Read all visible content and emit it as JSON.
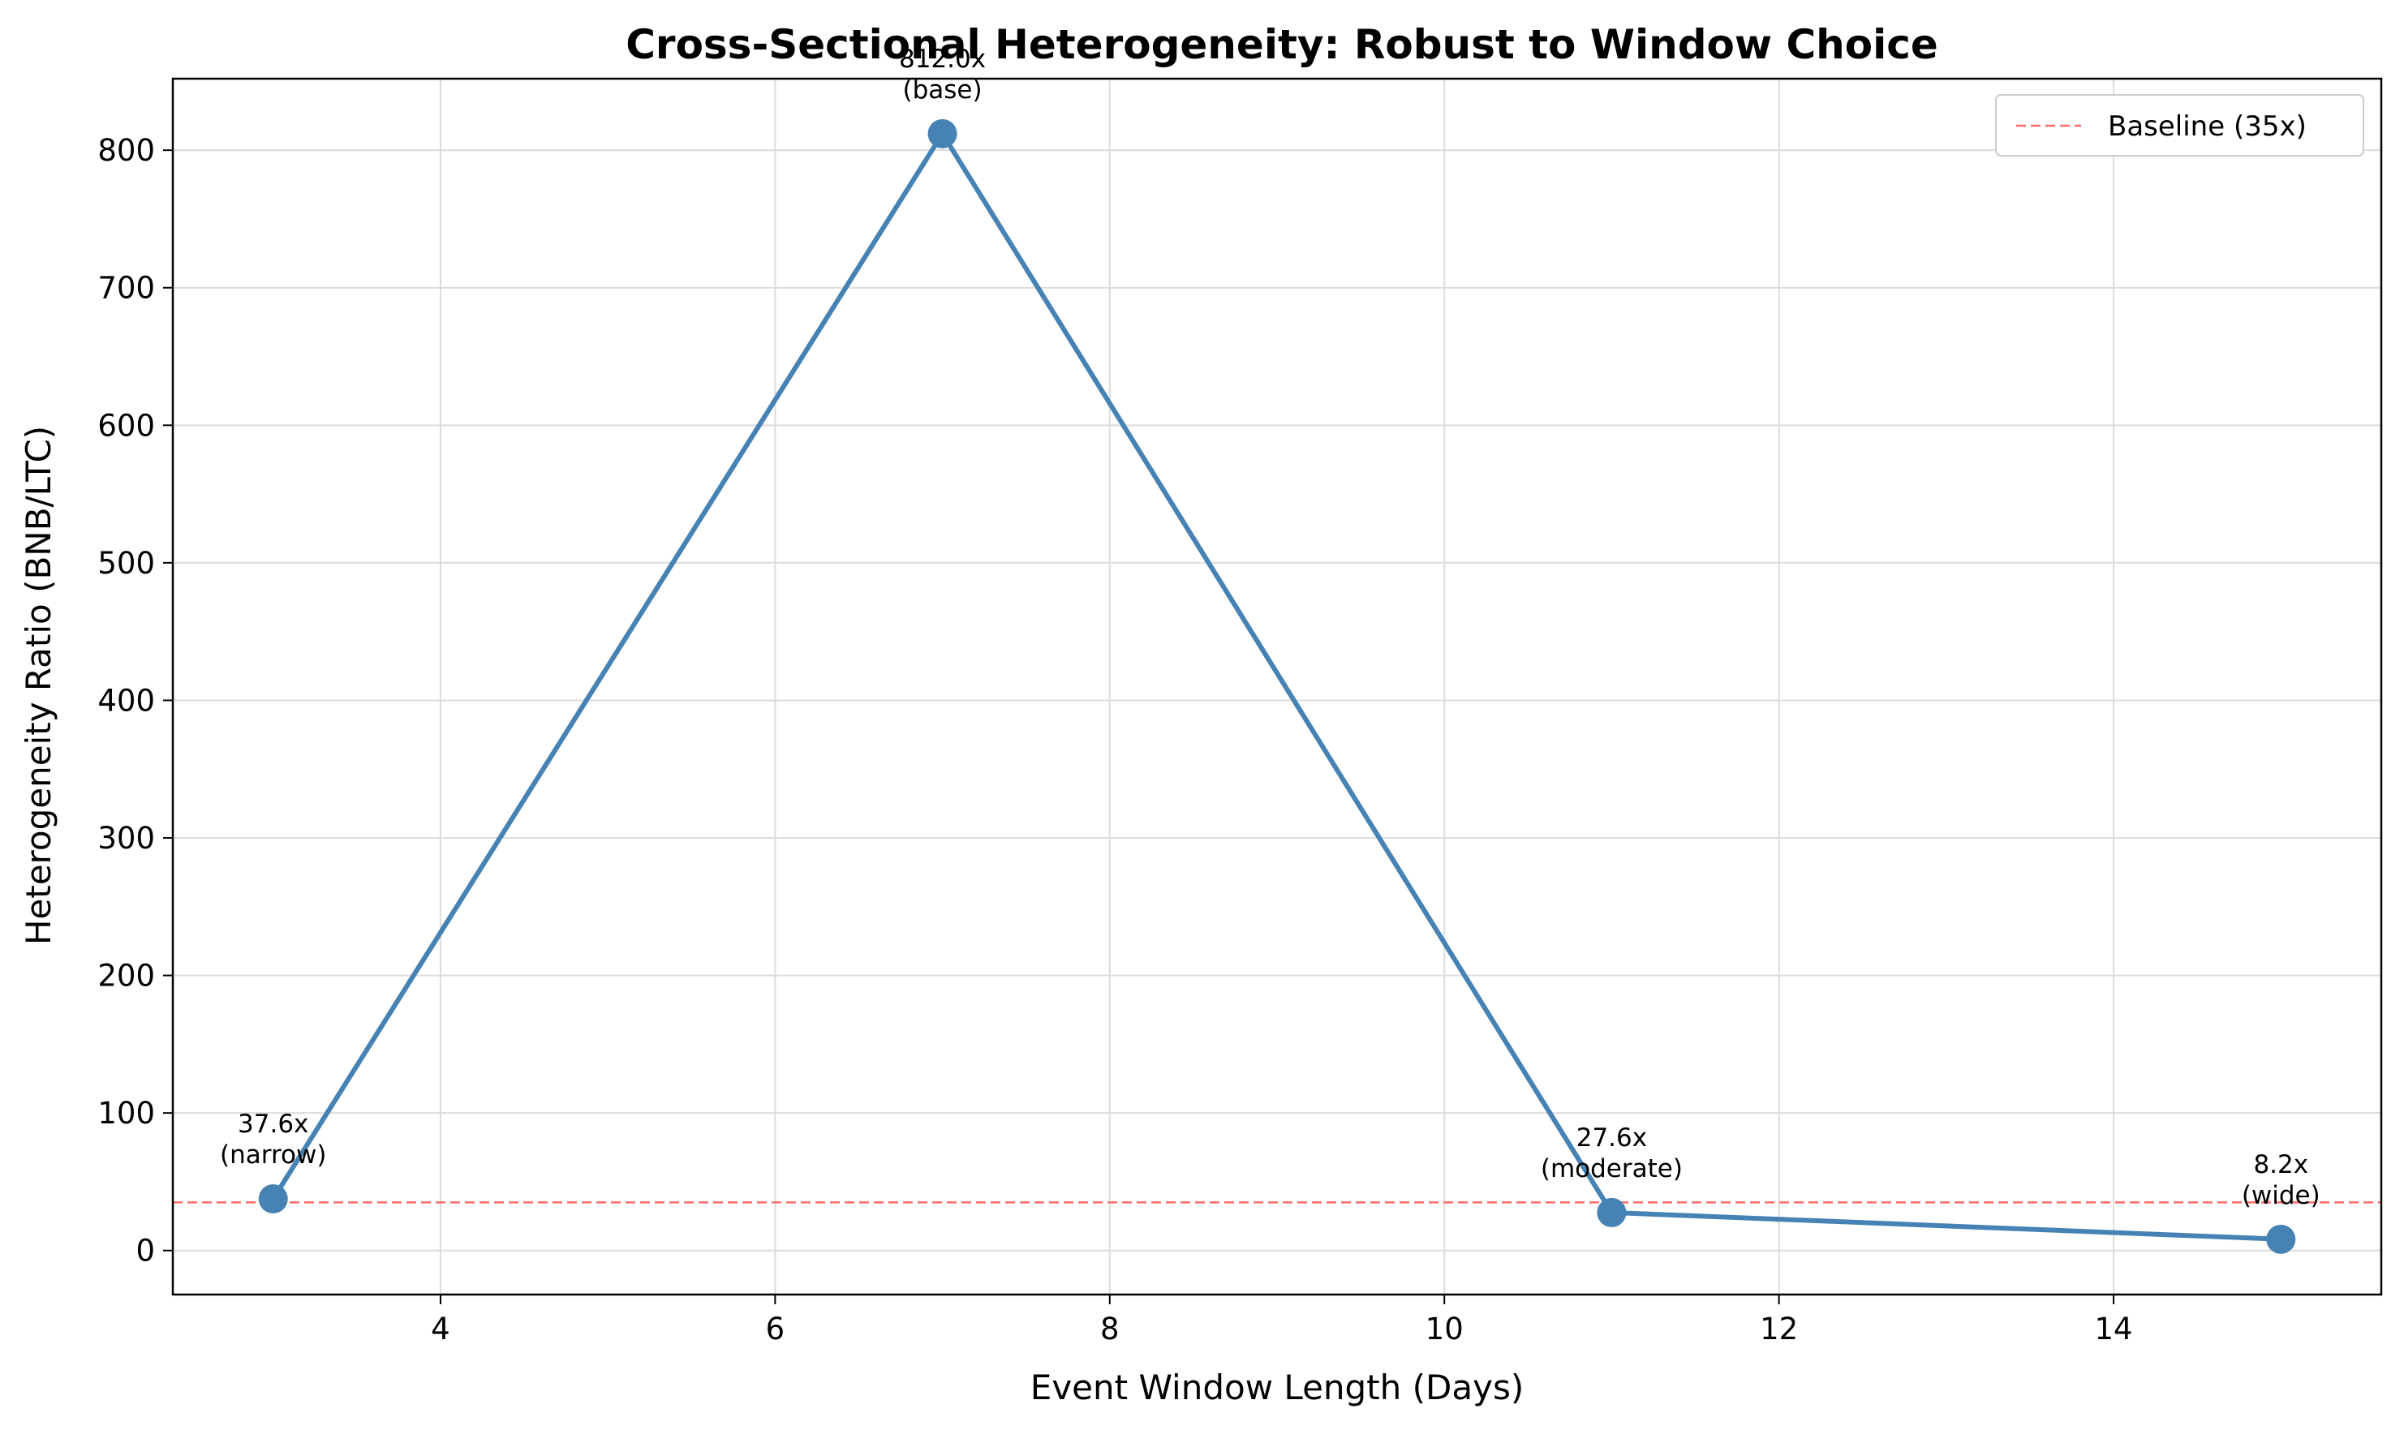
{
  "chart_data": {
    "type": "line",
    "title": "Cross-Sectional Heterogeneity: Robust to Window Choice",
    "xlabel": "Event Window Length (Days)",
    "ylabel": "Heterogeneity Ratio (BNB/LTC)",
    "xlim": [
      2.4,
      15.6
    ],
    "ylim": [
      -32,
      852
    ],
    "xticks": [
      4,
      6,
      8,
      10,
      12,
      14
    ],
    "yticks": [
      0,
      100,
      200,
      300,
      400,
      500,
      600,
      700,
      800
    ],
    "grid": true,
    "legend_position": "top-right",
    "series": [
      {
        "values_x": [
          3,
          7,
          11,
          15
        ],
        "values_y": [
          37.6,
          812.0,
          27.6,
          8.2
        ],
        "labels": [
          [
            "37.6x",
            "(narrow)"
          ],
          [
            "812.0x",
            "(base)"
          ],
          [
            "27.6x",
            "(moderate)"
          ],
          [
            "8.2x",
            "(wide)"
          ]
        ],
        "color": "#4682b4"
      }
    ],
    "reference_line": {
      "y": 35,
      "name": "Baseline (35x)",
      "color": "#ff6b6b",
      "style": "dashed"
    }
  }
}
